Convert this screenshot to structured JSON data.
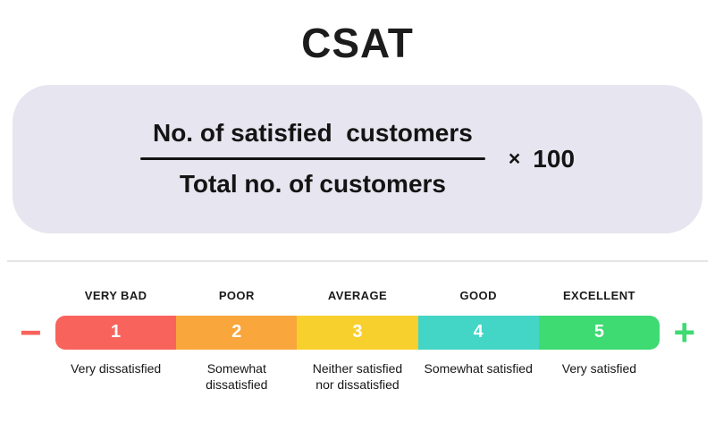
{
  "title": "CSAT",
  "formula": {
    "numerator": "No. of satisfied  customers",
    "denominator": "Total no. of customers",
    "times_sign": "×",
    "multiplier": "100"
  },
  "scale": {
    "minus_sign": "−",
    "plus_sign": "+",
    "items": [
      {
        "label": "VERY BAD",
        "number": "1",
        "color": "#f8635c",
        "description": "Very dissatisfied"
      },
      {
        "label": "POOR",
        "number": "2",
        "color": "#f9a63c",
        "description": "Somewhat dissatisfied"
      },
      {
        "label": "AVERAGE",
        "number": "3",
        "color": "#f8d02e",
        "description": "Neither satisfied nor dissatisfied"
      },
      {
        "label": "GOOD",
        "number": "4",
        "color": "#43d5c6",
        "description": "Somewhat satisfied"
      },
      {
        "label": "EXCELLENT",
        "number": "5",
        "color": "#3eda72",
        "description": "Very satisfied"
      }
    ]
  },
  "colors": {
    "formula_background": "#e7e5ef",
    "fraction_line": "#141414",
    "minus": "#f8635c",
    "plus": "#3eda72"
  }
}
